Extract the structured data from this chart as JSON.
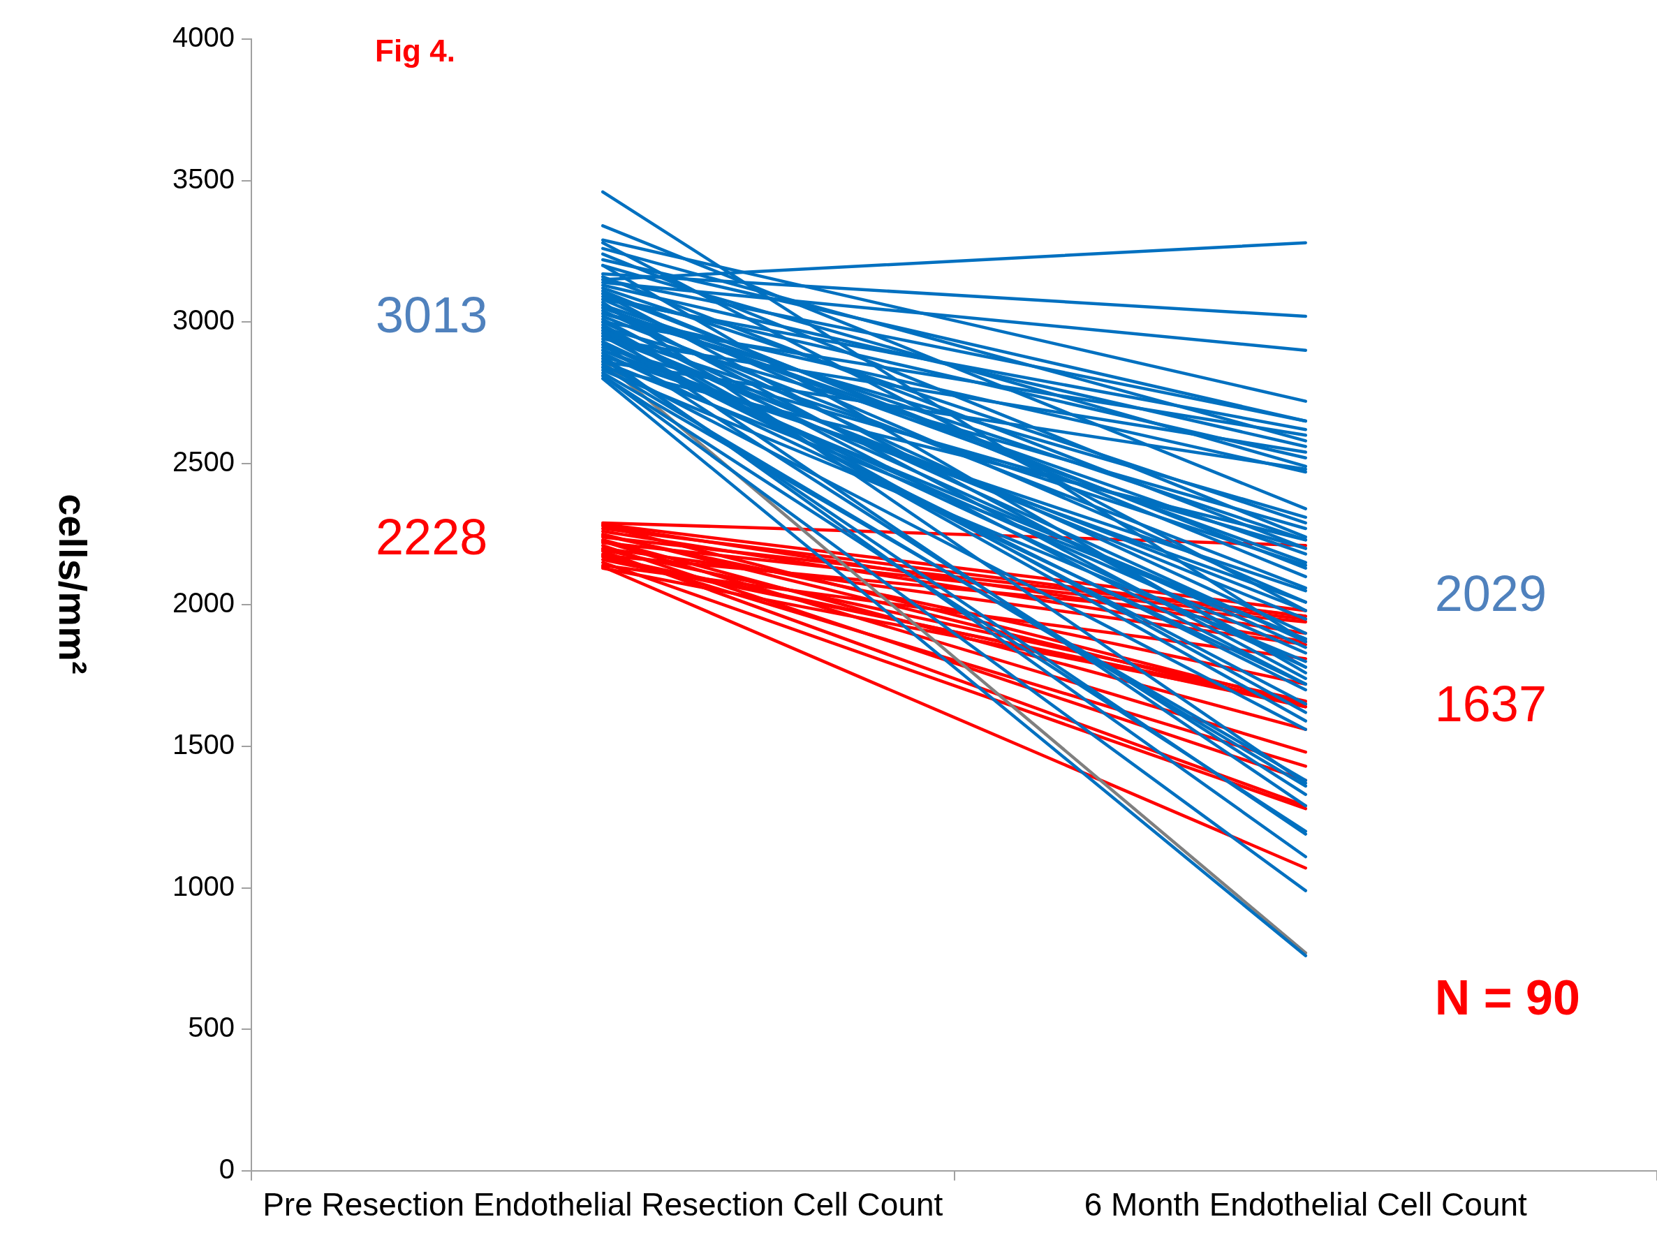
{
  "chart_data": {
    "type": "line",
    "title": "Fig 4.",
    "ylabel": "cells/mm²",
    "categories": [
      "Pre Resection Endothelial Resection Cell Count",
      "6 Month Endothelial Cell Count"
    ],
    "ylim": [
      0,
      4000
    ],
    "yticks": [
      0,
      500,
      1000,
      1500,
      2000,
      2500,
      3000,
      3500,
      4000
    ],
    "grid": false,
    "legend": false,
    "marker": "none",
    "line_style": "solid",
    "annotations": [
      {
        "text": "3013",
        "x": "Pre Resection Endothelial Resection Cell Count",
        "y": 3013
      },
      {
        "text": "2228",
        "x": "Pre Resection Endothelial Resection Cell Count",
        "y": 2228
      },
      {
        "text": "2029",
        "x": "6 Month Endothelial Cell Count",
        "y": 2029
      },
      {
        "text": "1637",
        "x": "6 Month Endothelial Cell Count",
        "y": 1637
      },
      "N = 90"
    ],
    "series": [
      {
        "color": "#0070c0",
        "values": [
          3460,
          1870
        ]
      },
      {
        "color": "#0070c0",
        "values": [
          3340,
          2340
        ]
      },
      {
        "color": "#0070c0",
        "values": [
          3290,
          2720
        ]
      },
      {
        "color": "#0070c0",
        "values": [
          3280,
          1980
        ]
      },
      {
        "color": "#0070c0",
        "values": [
          3260,
          2580
        ]
      },
      {
        "color": "#0070c0",
        "values": [
          3240,
          2240
        ]
      },
      {
        "color": "#0070c0",
        "values": [
          3220,
          2650
        ]
      },
      {
        "color": "#0070c0",
        "values": [
          3200,
          2490
        ]
      },
      {
        "color": "#0070c0",
        "values": [
          3170,
          3020
        ]
      },
      {
        "color": "#0070c0",
        "values": [
          3160,
          2200
        ]
      },
      {
        "color": "#0070c0",
        "values": [
          3150,
          3280
        ]
      },
      {
        "color": "#0070c0",
        "values": [
          3140,
          2900
        ]
      },
      {
        "color": "#0070c0",
        "values": [
          3130,
          2560
        ]
      },
      {
        "color": "#0070c0",
        "values": [
          3120,
          2290
        ]
      },
      {
        "color": "#0070c0",
        "values": [
          3110,
          2100
        ]
      },
      {
        "color": "#0070c0",
        "values": [
          3100,
          1780
        ]
      },
      {
        "color": "#0070c0",
        "values": [
          3090,
          2520
        ]
      },
      {
        "color": "#0070c0",
        "values": [
          3080,
          2620
        ]
      },
      {
        "color": "#0070c0",
        "values": [
          3070,
          1370
        ]
      },
      {
        "color": "#0070c0",
        "values": [
          3060,
          2230
        ]
      },
      {
        "color": "#0070c0",
        "values": [
          3050,
          2180
        ]
      },
      {
        "color": "#0070c0",
        "values": [
          3040,
          1900
        ]
      },
      {
        "color": "#0070c0",
        "values": [
          3030,
          2470
        ]
      },
      {
        "color": "#0070c0",
        "values": [
          3020,
          2060
        ]
      },
      {
        "color": "#0070c0",
        "values": [
          3010,
          1720
        ]
      },
      {
        "color": "#0070c0",
        "values": [
          3000,
          2600
        ]
      },
      {
        "color": "#0070c0",
        "values": [
          2990,
          1620
        ]
      },
      {
        "color": "#0070c0",
        "values": [
          2980,
          2270
        ]
      },
      {
        "color": "#0070c0",
        "values": [
          2970,
          1850
        ]
      },
      {
        "color": "#0070c0",
        "values": [
          2960,
          2140
        ]
      },
      {
        "color": "#0070c0",
        "values": [
          2950,
          1980
        ]
      },
      {
        "color": "#0070c0",
        "values": [
          2940,
          2540
        ]
      },
      {
        "color": "#0070c0",
        "values": [
          2930,
          1780
        ]
      },
      {
        "color": "#0070c0",
        "values": [
          2920,
          1330
        ]
      },
      {
        "color": "#0070c0",
        "values": [
          2910,
          2200
        ]
      },
      {
        "color": "#0070c0",
        "values": [
          2900,
          1880
        ]
      },
      {
        "color": "#0070c0",
        "values": [
          2890,
          1720
        ]
      },
      {
        "color": "#0070c0",
        "values": [
          2880,
          2050
        ]
      },
      {
        "color": "#0070c0",
        "values": [
          2870,
          1190
        ]
      },
      {
        "color": "#0070c0",
        "values": [
          2860,
          2480
        ]
      },
      {
        "color": "#0070c0",
        "values": [
          2850,
          1560
        ]
      },
      {
        "color": "#0070c0",
        "values": [
          2840,
          2230
        ]
      },
      {
        "color": "#0070c0",
        "values": [
          2830,
          1800
        ]
      },
      {
        "color": "#0070c0",
        "values": [
          2820,
          1380
        ]
      },
      {
        "color": "#0070c0",
        "values": [
          2810,
          990
        ]
      },
      {
        "color": "#0070c0",
        "values": [
          2800,
          760
        ]
      },
      {
        "color": "#0070c0",
        "values": [
          2880,
          1110
        ]
      },
      {
        "color": "#0070c0",
        "values": [
          2950,
          1650
        ]
      },
      {
        "color": "#0070c0",
        "values": [
          3000,
          1870
        ]
      },
      {
        "color": "#0070c0",
        "values": [
          3060,
          1740
        ]
      },
      {
        "color": "#0070c0",
        "values": [
          3100,
          2130
        ]
      },
      {
        "color": "#0070c0",
        "values": [
          2980,
          1590
        ]
      },
      {
        "color": "#0070c0",
        "values": [
          2930,
          1700
        ]
      },
      {
        "color": "#0070c0",
        "values": [
          3030,
          2310
        ]
      },
      {
        "color": "#0070c0",
        "values": [
          2860,
          1880
        ]
      },
      {
        "color": "#0070c0",
        "values": [
          2900,
          2010
        ]
      },
      {
        "color": "#0070c0",
        "values": [
          3150,
          2650
        ]
      },
      {
        "color": "#0070c0",
        "values": [
          3200,
          1760
        ]
      },
      {
        "color": "#0070c0",
        "values": [
          2970,
          1290
        ]
      },
      {
        "color": "#0070c0",
        "values": [
          2840,
          1360
        ]
      },
      {
        "color": "#0070c0",
        "values": [
          2810,
          1200
        ]
      },
      {
        "color": "#0070c0",
        "values": [
          3050,
          2150
        ]
      },
      {
        "color": "#0070c0",
        "values": [
          2960,
          1950
        ]
      },
      {
        "color": "#0070c0",
        "values": [
          3080,
          2010
        ]
      },
      {
        "color": "#0070c0",
        "values": [
          2920,
          1830
        ]
      },
      {
        "color": "#7f7f7f",
        "values": [
          2860,
          770
        ]
      },
      {
        "color": "#ff0000",
        "values": [
          2290,
          2210
        ]
      },
      {
        "color": "#ff0000",
        "values": [
          2285,
          1980
        ]
      },
      {
        "color": "#ff0000",
        "values": [
          2280,
          1650
        ]
      },
      {
        "color": "#ff0000",
        "values": [
          2270,
          1960
        ]
      },
      {
        "color": "#ff0000",
        "values": [
          2260,
          1870
        ]
      },
      {
        "color": "#ff0000",
        "values": [
          2250,
          1640
        ]
      },
      {
        "color": "#ff0000",
        "values": [
          2245,
          1720
        ]
      },
      {
        "color": "#ff0000",
        "values": [
          2240,
          1960
        ]
      },
      {
        "color": "#ff0000",
        "values": [
          2230,
          1560
        ]
      },
      {
        "color": "#ff0000",
        "values": [
          2225,
          1480
        ]
      },
      {
        "color": "#ff0000",
        "values": [
          2220,
          1950
        ]
      },
      {
        "color": "#ff0000",
        "values": [
          2210,
          1380
        ]
      },
      {
        "color": "#ff0000",
        "values": [
          2200,
          1860
        ]
      },
      {
        "color": "#ff0000",
        "values": [
          2195,
          1660
        ]
      },
      {
        "color": "#ff0000",
        "values": [
          2190,
          1290
        ]
      },
      {
        "color": "#ff0000",
        "values": [
          2180,
          1430
        ]
      },
      {
        "color": "#ff0000",
        "values": [
          2175,
          1940
        ]
      },
      {
        "color": "#ff0000",
        "values": [
          2170,
          1640
        ]
      },
      {
        "color": "#ff0000",
        "values": [
          2160,
          1650
        ]
      },
      {
        "color": "#ff0000",
        "values": [
          2150,
          1280
        ]
      },
      {
        "color": "#ff0000",
        "values": [
          2140,
          1810
        ]
      },
      {
        "color": "#ff0000",
        "values": [
          2135,
          1070
        ]
      },
      {
        "color": "#ff0000",
        "values": [
          2130,
          1650
        ]
      },
      {
        "color": "#ff0000",
        "values": [
          2280,
          1900
        ]
      }
    ]
  }
}
